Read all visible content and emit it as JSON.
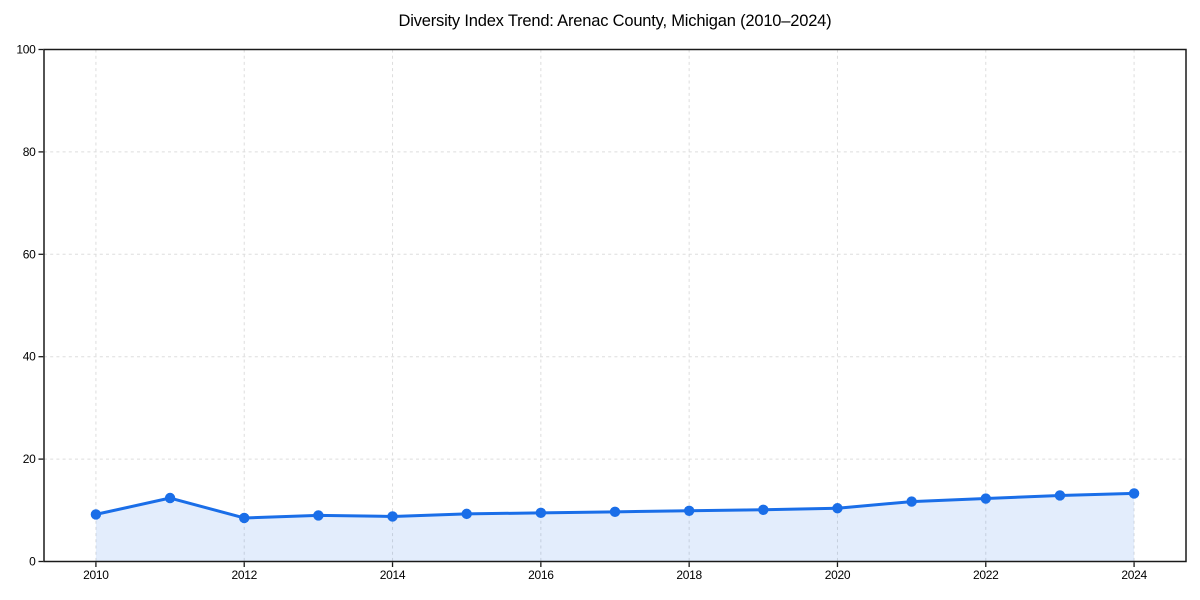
{
  "figure": {
    "title": "Diversity Index Trend: Arenac County, Michigan (2010–2024)",
    "background_color": "#ffffff"
  },
  "chart_data": {
    "type": "area",
    "title": "Diversity Index Trend: Arenac County, Michigan (2010–2024)",
    "x": [
      2010,
      2011,
      2012,
      2013,
      2014,
      2015,
      2016,
      2017,
      2018,
      2019,
      2020,
      2021,
      2022,
      2023,
      2024
    ],
    "values": [
      9.2,
      12.4,
      8.5,
      9.0,
      8.8,
      9.3,
      9.5,
      9.7,
      9.9,
      10.1,
      10.4,
      11.7,
      12.3,
      12.9,
      13.3
    ],
    "xlabel": "",
    "ylabel": "",
    "xlim": [
      2009.3,
      2024.7
    ],
    "ylim": [
      0,
      100
    ],
    "xticks": [
      2010,
      2012,
      2014,
      2016,
      2018,
      2020,
      2022,
      2024
    ],
    "yticks": [
      0,
      20,
      40,
      60,
      80,
      100
    ],
    "grid": true,
    "grid_style": "dashed",
    "legend_position": "none",
    "marker": "circle",
    "colors": {
      "line": "#1a6ee8",
      "marker": "#1a6ee8",
      "fill": "#1a6ee8",
      "fill_opacity": 0.12,
      "grid": "#dddddd",
      "axis": "#1a1a1a",
      "tick_text": "#000000"
    }
  }
}
